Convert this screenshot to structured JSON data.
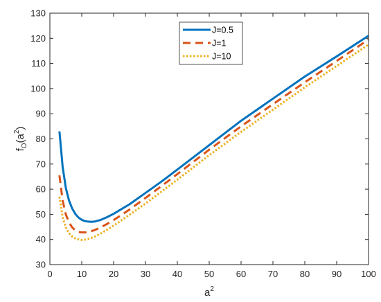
{
  "chart_data": {
    "type": "line",
    "title": "",
    "xlabel": "a²",
    "ylabel": "f_O(a²)",
    "xlabel_parts": {
      "base": "a",
      "sup": "2"
    },
    "ylabel_parts": {
      "base": "f",
      "sub": "O",
      "open": "(a",
      "sup": "2",
      "close": ")"
    },
    "xlim": [
      0,
      100
    ],
    "ylim": [
      30,
      130
    ],
    "xticks": [
      0,
      10,
      20,
      30,
      40,
      50,
      60,
      70,
      80,
      90,
      100
    ],
    "yticks": [
      30,
      40,
      50,
      60,
      70,
      80,
      90,
      100,
      110,
      120,
      130
    ],
    "grid": false,
    "legend_position": "top-center",
    "series": [
      {
        "name": "J=0.5",
        "color": "#0072BD",
        "style": "solid",
        "x": [
          3,
          4,
          5,
          6,
          7,
          8,
          9,
          10,
          11,
          12,
          13,
          14,
          16,
          18,
          20,
          25,
          30,
          35,
          40,
          50,
          60,
          70,
          80,
          90,
          100
        ],
        "y": [
          83,
          69,
          60.5,
          55.5,
          52.3,
          50.1,
          48.7,
          47.8,
          47.3,
          47.1,
          47.0,
          47.1,
          47.8,
          48.9,
          50.2,
          54.0,
          58.5,
          63.0,
          67.8,
          77.5,
          87.2,
          96.0,
          104.8,
          112.8,
          121.0
        ]
      },
      {
        "name": "J=1",
        "color": "#D95319",
        "style": "dashed",
        "x": [
          3,
          4,
          5,
          6,
          7,
          8,
          9,
          10,
          11,
          12,
          13,
          14,
          16,
          18,
          20,
          25,
          30,
          35,
          40,
          50,
          60,
          70,
          80,
          90,
          100
        ],
        "y": [
          65.5,
          55.5,
          50.0,
          46.8,
          44.8,
          43.6,
          43.0,
          42.8,
          42.8,
          43.0,
          43.3,
          43.7,
          44.8,
          46.2,
          47.7,
          51.9,
          56.5,
          61.2,
          66.0,
          75.7,
          85.0,
          93.8,
          102.5,
          111.0,
          119.5
        ]
      },
      {
        "name": "J=10",
        "color": "#EDB120",
        "style": "dotted",
        "x": [
          3,
          4,
          5,
          6,
          7,
          8,
          9,
          10,
          11,
          12,
          13,
          14,
          16,
          18,
          20,
          25,
          30,
          35,
          40,
          50,
          60,
          70,
          80,
          90,
          100
        ],
        "y": [
          57,
          49.0,
          44.8,
          42.5,
          41.2,
          40.4,
          40.0,
          39.8,
          39.9,
          40.2,
          40.6,
          41.1,
          42.4,
          43.9,
          45.5,
          49.8,
          54.3,
          59.0,
          63.8,
          73.5,
          82.8,
          91.6,
          100.5,
          109.0,
          117.5
        ]
      }
    ]
  }
}
